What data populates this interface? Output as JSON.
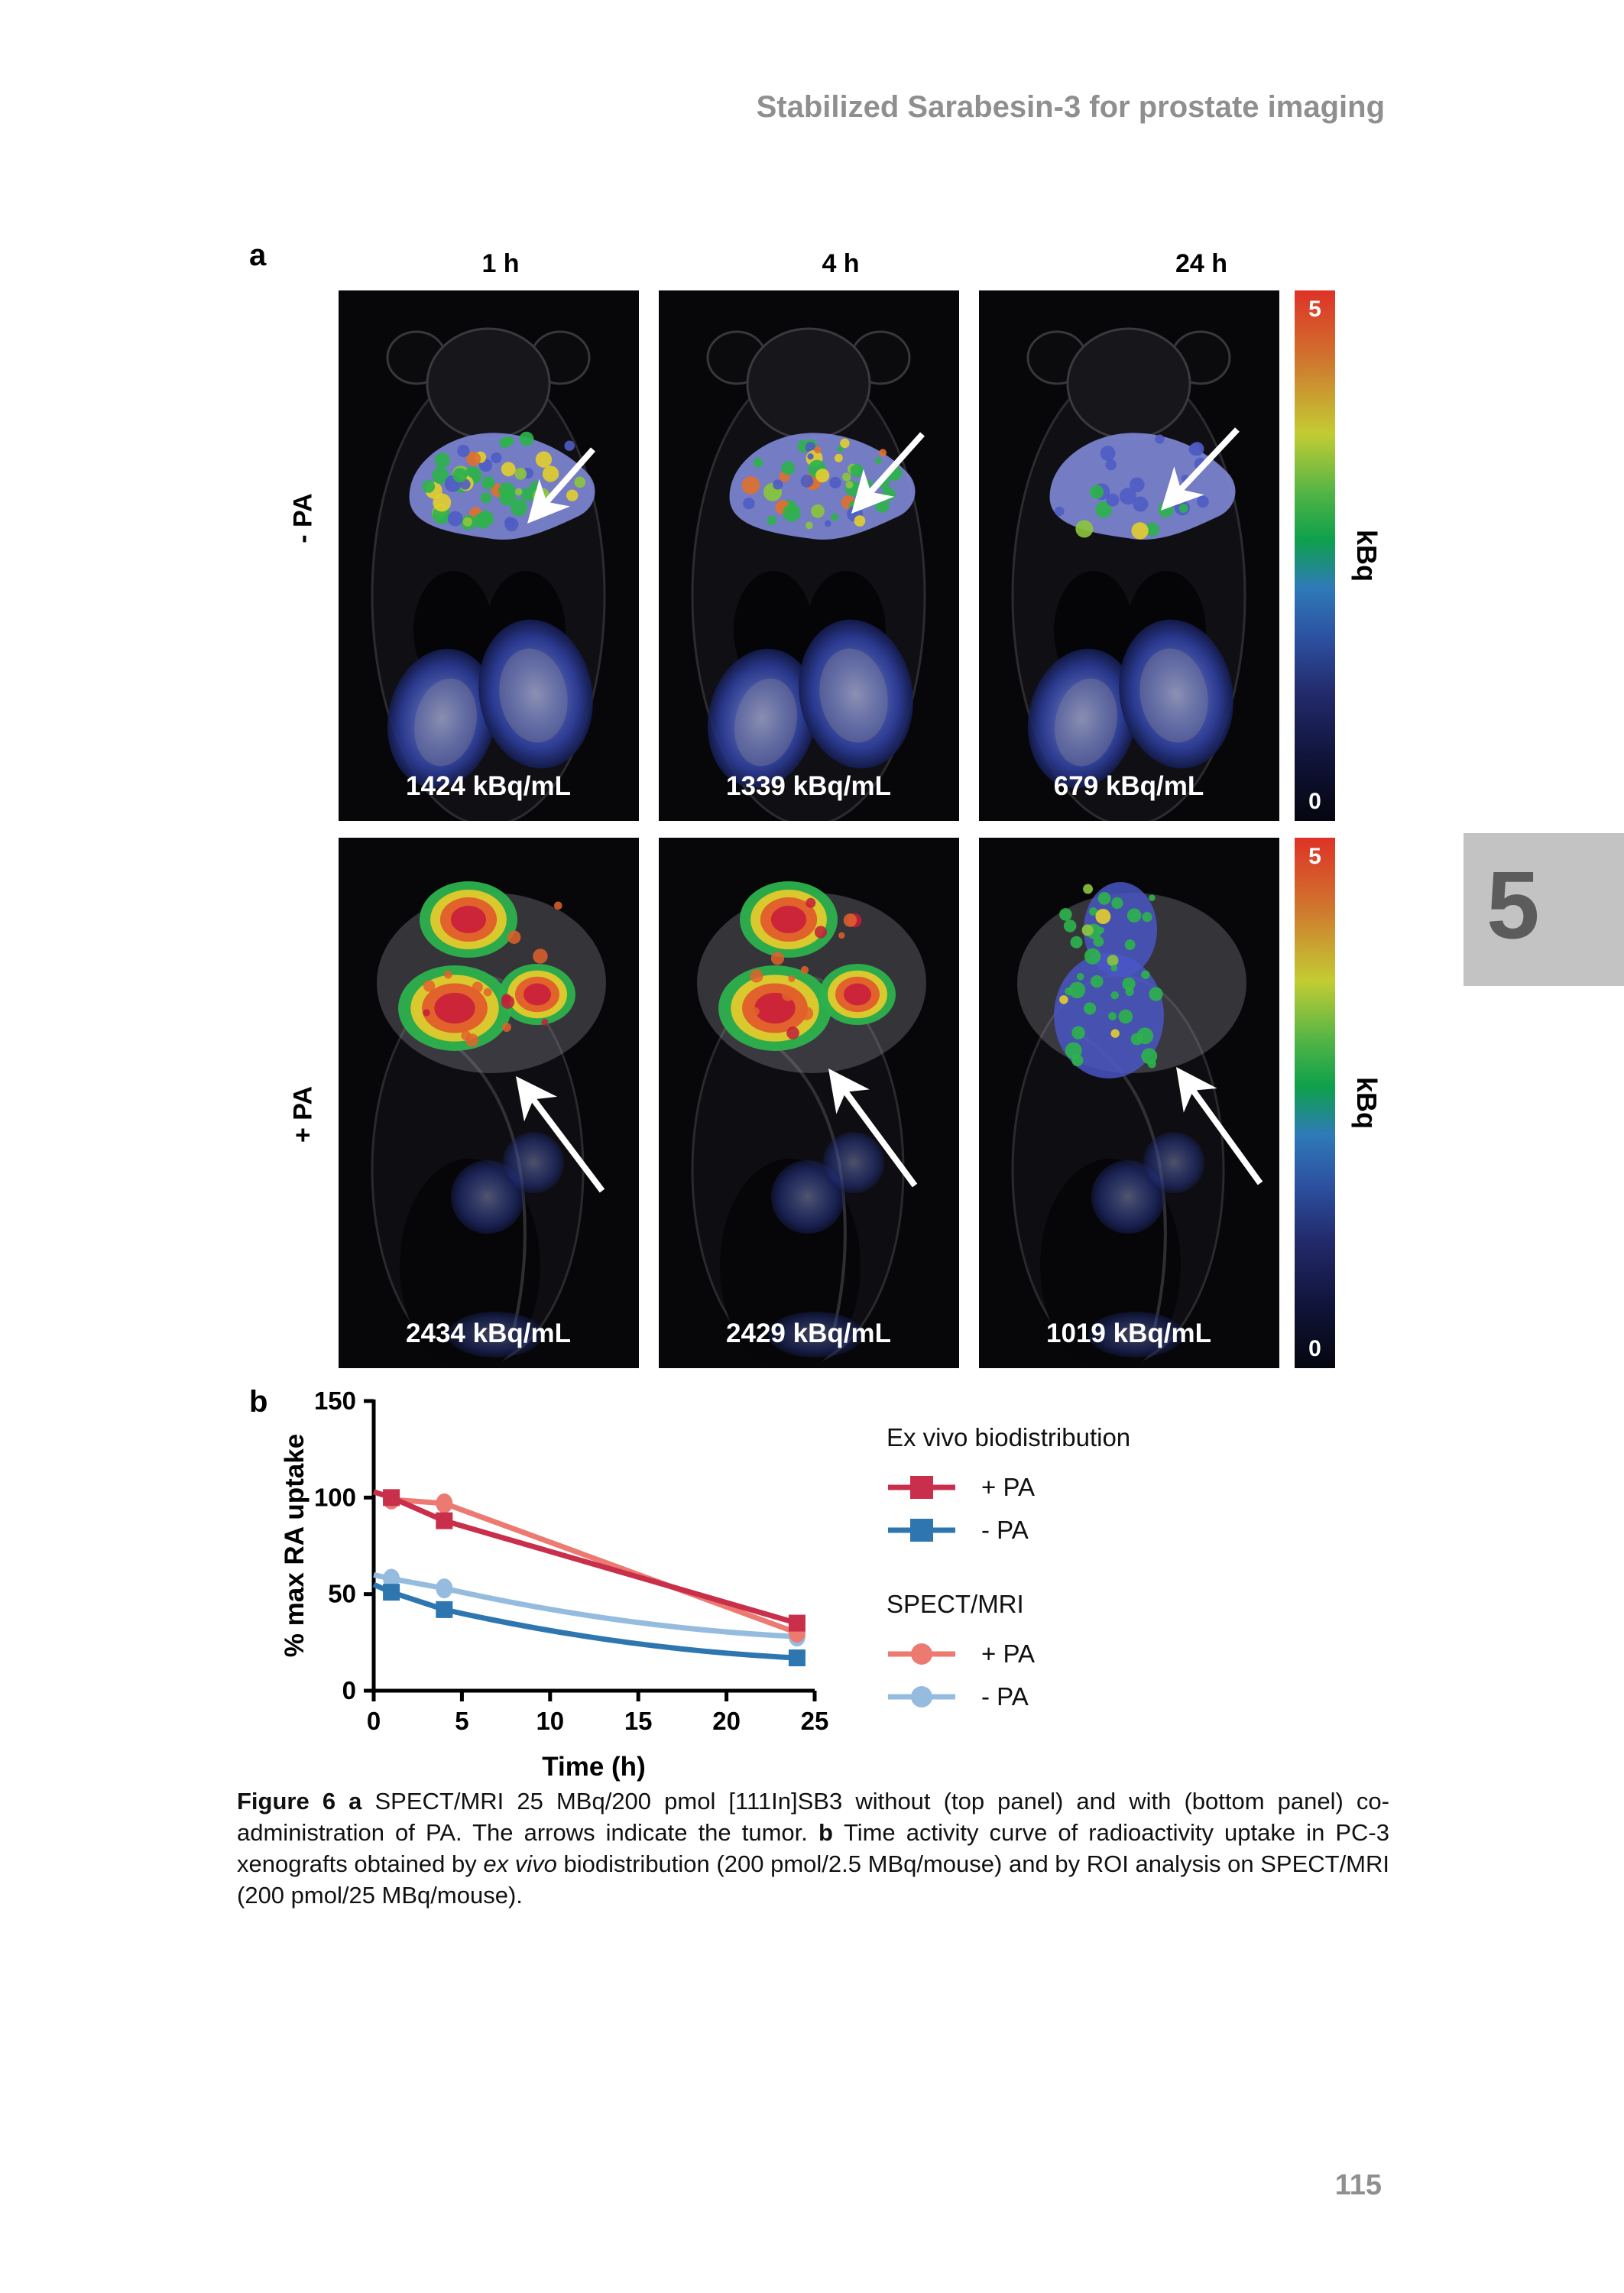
{
  "page": {
    "header_title": "Stabilized Sarabesin-3 for prostate imaging",
    "page_number": "115",
    "chapter_tab": "5"
  },
  "colors": {
    "exvivo_plus_red": "#c92e4b",
    "exvivo_minus_blue": "#2e76b0",
    "spect_plus_salmon": "#ed7a71",
    "spect_minus_lightblue": "#95bcdf",
    "header_gray": "#8f8f8f",
    "tab_gray": "#c3c3c3",
    "tab_digit_gray": "#5c5c5c"
  },
  "panel_a": {
    "label": "a",
    "column_headers": [
      "1 h",
      "4 h",
      "24 h"
    ],
    "rows": [
      {
        "label": "- PA",
        "values": [
          "1424 kBq/mL",
          "1339 kBq/mL",
          "679 kBq/mL"
        ]
      },
      {
        "label": "+ PA",
        "values": [
          "2434 kBq/mL",
          "2429 kBq/mL",
          "1019 kBq/mL"
        ]
      }
    ],
    "colorbar": {
      "max": "5",
      "min": "0",
      "unit": "kBq"
    }
  },
  "panel_b": {
    "label": "b",
    "legend": {
      "groups": [
        {
          "title": "Ex vivo biodistribution",
          "items": [
            {
              "label": "+ PA",
              "color": "#c92e4b",
              "marker": "square"
            },
            {
              "label": "- PA",
              "color": "#2e76b0",
              "marker": "square"
            }
          ]
        },
        {
          "title": "SPECT/MRI",
          "items": [
            {
              "label": "+ PA",
              "color": "#ed7a71",
              "marker": "circle"
            },
            {
              "label": "- PA",
              "color": "#95bcdf",
              "marker": "circle"
            }
          ]
        }
      ]
    }
  },
  "chart_data": {
    "type": "line",
    "title": "",
    "xlabel": "Time (h)",
    "ylabel": "% max RA uptake",
    "xlim": [
      0,
      25
    ],
    "ylim": [
      0,
      150
    ],
    "x_ticks": [
      0,
      5,
      10,
      15,
      20,
      25
    ],
    "y_ticks": [
      0,
      50,
      100,
      150
    ],
    "x": [
      1,
      4,
      24
    ],
    "series": [
      {
        "name": "SPECT/MRI - PA",
        "marker": "circle",
        "color": "#95bcdf",
        "line_start": [
          0,
          60
        ],
        "curve": true,
        "values": [
          58,
          53,
          28
        ]
      },
      {
        "name": "Ex vivo biodistribution - PA",
        "marker": "square",
        "color": "#2e76b0",
        "line_start": [
          0,
          55
        ],
        "curve": true,
        "values": [
          51,
          42,
          17
        ]
      },
      {
        "name": "SPECT/MRI + PA",
        "marker": "circle",
        "color": "#ed7a71",
        "line_start": null,
        "curve": false,
        "values": [
          99,
          97,
          30
        ]
      },
      {
        "name": "Ex vivo biodistribution + PA",
        "marker": "square",
        "color": "#c92e4b",
        "line_start": [
          0,
          103
        ],
        "curve": false,
        "values": [
          100,
          88,
          35
        ]
      }
    ],
    "legend_position": "right",
    "grid": false
  },
  "caption": {
    "figure_label": "Figure 6 a ",
    "text_1": "SPECT/MRI 25 MBq/200 pmol [111In]SB3 without (top panel) and with (bottom panel) co-administration of PA. The arrows indicate the tumor. ",
    "b_label": "b ",
    "text_2": "Time activity curve of radioactivity uptake in PC-3 xenografts obtained by ",
    "italic_1": "ex vivo",
    "text_3": " biodistribution (200 pmol/2.5 MBq/mouse) and by ROI analysis on SPECT/MRI (200 pmol/25 MBq/mouse)."
  }
}
